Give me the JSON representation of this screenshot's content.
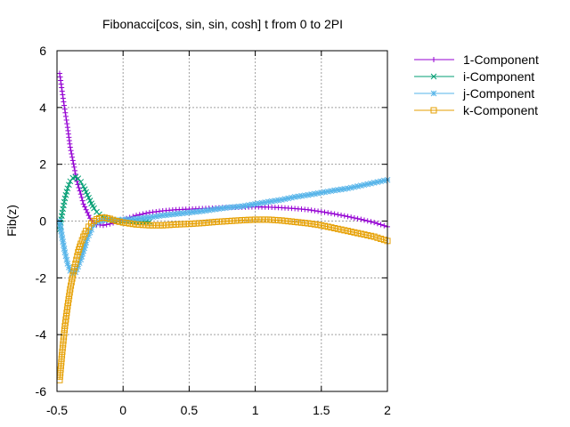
{
  "chart_data": {
    "type": "line",
    "title": "Fibonacci[cos, sin, sin, cosh] t from 0 to 2PI",
    "xlabel": "",
    "ylabel": "Fib(z)",
    "xlim": [
      -0.5,
      2
    ],
    "ylim": [
      -6,
      6
    ],
    "xticks": [
      -0.5,
      0,
      0.5,
      1,
      1.5,
      2
    ],
    "xtick_labels": [
      "-0.5",
      "0",
      "0.5",
      "1",
      "1.5",
      "2"
    ],
    "yticks": [
      -6,
      -4,
      -2,
      0,
      2,
      4,
      6
    ],
    "ytick_labels": [
      "-6",
      "-4",
      "-2",
      "0",
      "2",
      "4",
      "6"
    ],
    "grid": true,
    "legend_position": "top-right outside",
    "series": [
      {
        "name": "1-Component",
        "color": "#9400d3",
        "marker": "plus",
        "x": [
          -0.48,
          -0.45,
          -0.42,
          -0.4,
          -0.37,
          -0.35,
          -0.32,
          -0.3,
          -0.27,
          -0.25,
          -0.22,
          -0.2,
          -0.15,
          -0.1,
          -0.05,
          0,
          0.1,
          0.2,
          0.3,
          0.4,
          0.5,
          0.6,
          0.7,
          0.8,
          0.9,
          1.0,
          1.1,
          1.2,
          1.3,
          1.4,
          1.5,
          1.6,
          1.7,
          1.8,
          1.9,
          2.0
        ],
        "y": [
          5.2,
          4.2,
          3.3,
          2.6,
          1.9,
          1.4,
          0.95,
          0.6,
          0.3,
          0.1,
          -0.05,
          -0.12,
          -0.15,
          -0.1,
          -0.03,
          0.05,
          0.2,
          0.3,
          0.36,
          0.4,
          0.42,
          0.44,
          0.46,
          0.48,
          0.49,
          0.5,
          0.49,
          0.47,
          0.44,
          0.4,
          0.33,
          0.25,
          0.16,
          0.06,
          -0.05,
          -0.2
        ]
      },
      {
        "name": "i-Component",
        "color": "#009e73",
        "marker": "cross",
        "x": [
          -0.48,
          -0.46,
          -0.44,
          -0.42,
          -0.4,
          -0.38,
          -0.36,
          -0.34,
          -0.32,
          -0.3,
          -0.28,
          -0.26,
          -0.24,
          -0.22,
          -0.2,
          -0.16,
          -0.12,
          -0.08,
          -0.04,
          0,
          0.1,
          0.2
        ],
        "y": [
          -0.3,
          0.3,
          0.8,
          1.15,
          1.4,
          1.52,
          1.55,
          1.5,
          1.38,
          1.22,
          1.02,
          0.82,
          0.62,
          0.45,
          0.32,
          0.15,
          0.06,
          0.02,
          0.0,
          0.0,
          -0.02,
          -0.03
        ]
      },
      {
        "name": "j-Component",
        "color": "#56b4e9",
        "marker": "star",
        "x": [
          -0.48,
          -0.46,
          -0.44,
          -0.42,
          -0.4,
          -0.38,
          -0.36,
          -0.34,
          -0.32,
          -0.3,
          -0.28,
          -0.26,
          -0.24,
          -0.22,
          -0.2,
          -0.16,
          -0.12,
          -0.08,
          -0.04,
          0,
          0.1,
          0.2,
          0.3,
          0.4,
          0.5,
          0.6,
          0.7,
          0.8,
          0.9,
          1.0,
          1.1,
          1.2,
          1.3,
          1.4,
          1.5,
          1.6,
          1.7,
          1.8,
          1.9,
          2.0
        ],
        "y": [
          0.0,
          -0.6,
          -1.1,
          -1.5,
          -1.75,
          -1.85,
          -1.8,
          -1.6,
          -1.35,
          -1.05,
          -0.75,
          -0.5,
          -0.3,
          -0.15,
          -0.05,
          0.02,
          0.05,
          0.05,
          0.05,
          0.05,
          0.08,
          0.13,
          0.2,
          0.25,
          0.3,
          0.35,
          0.42,
          0.48,
          0.52,
          0.6,
          0.68,
          0.75,
          0.85,
          0.92,
          1.0,
          1.08,
          1.15,
          1.25,
          1.35,
          1.45
        ]
      },
      {
        "name": "k-Component",
        "color": "#e69f00",
        "marker": "box",
        "x": [
          -0.48,
          -0.46,
          -0.44,
          -0.42,
          -0.4,
          -0.38,
          -0.36,
          -0.34,
          -0.32,
          -0.3,
          -0.28,
          -0.26,
          -0.24,
          -0.22,
          -0.2,
          -0.18,
          -0.16,
          -0.14,
          -0.12,
          -0.1,
          -0.05,
          0,
          0.1,
          0.2,
          0.3,
          0.4,
          0.5,
          0.6,
          0.7,
          0.8,
          0.9,
          1.0,
          1.1,
          1.2,
          1.3,
          1.4,
          1.5,
          1.6,
          1.7,
          1.8,
          1.9,
          2.0
        ],
        "y": [
          -5.6,
          -4.6,
          -3.7,
          -3.0,
          -2.4,
          -1.9,
          -1.5,
          -1.1,
          -0.8,
          -0.55,
          -0.35,
          -0.2,
          -0.08,
          0.0,
          0.06,
          0.1,
          0.12,
          0.12,
          0.1,
          0.08,
          0.0,
          -0.05,
          -0.12,
          -0.15,
          -0.15,
          -0.12,
          -0.1,
          -0.07,
          -0.03,
          0.0,
          0.03,
          0.05,
          0.05,
          0.02,
          -0.03,
          -0.08,
          -0.15,
          -0.25,
          -0.35,
          -0.45,
          -0.55,
          -0.7
        ]
      }
    ]
  }
}
